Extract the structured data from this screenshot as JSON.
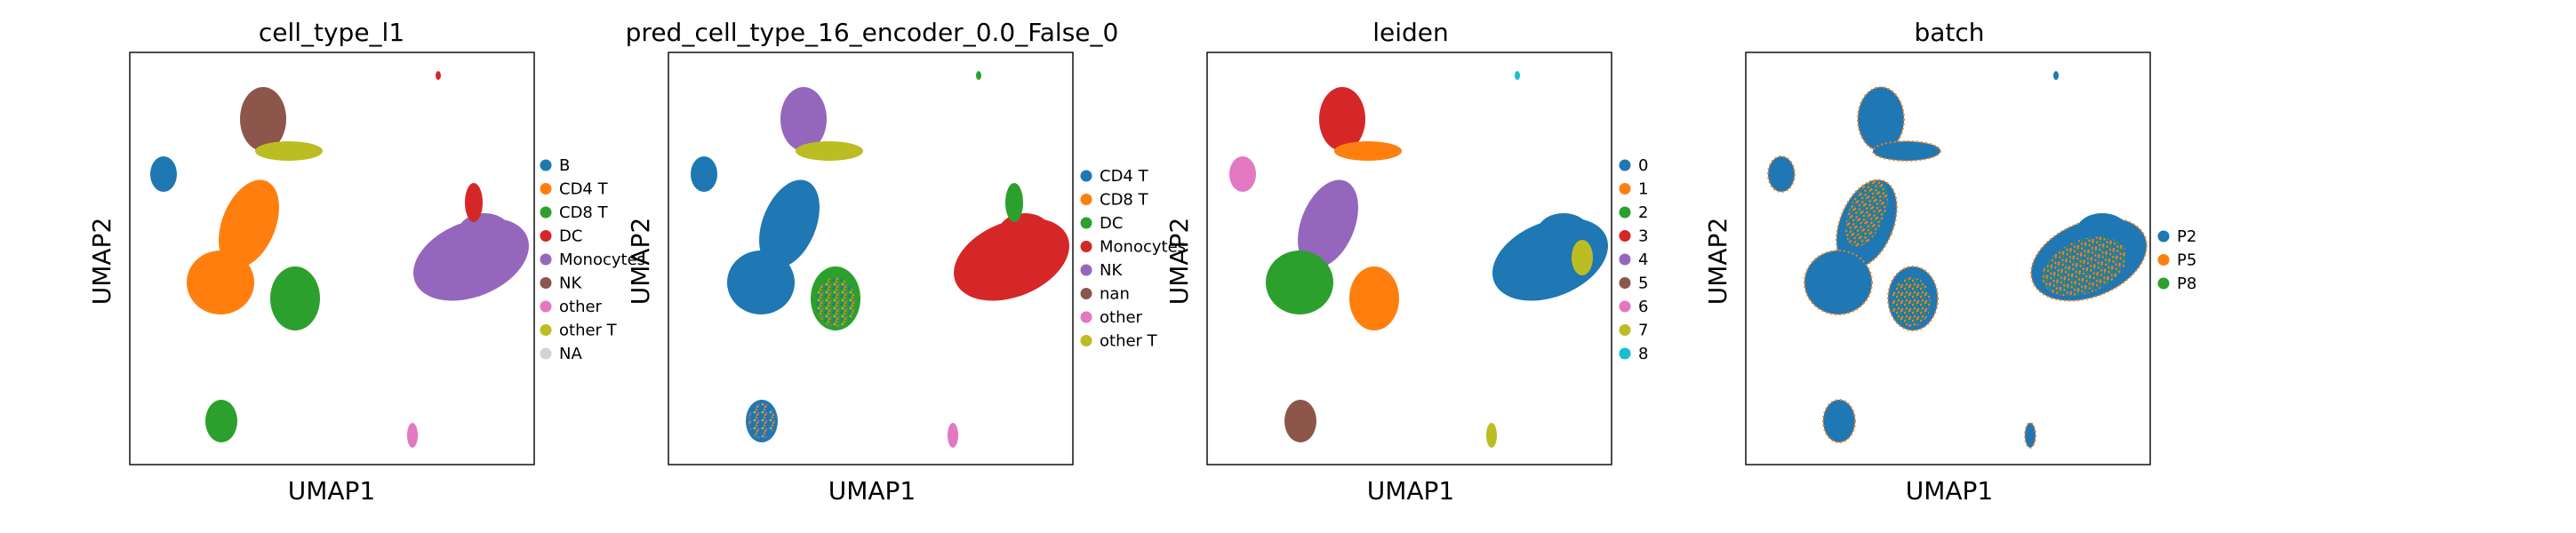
{
  "chart_data": [
    {
      "type": "scatter",
      "title": "cell_type_l1",
      "xlabel": "UMAP1",
      "ylabel": "UMAP2",
      "grid": false,
      "ticks": false,
      "legend_position": "right",
      "legend": [
        {
          "label": "B",
          "color": "#1f77b4"
        },
        {
          "label": "CD4 T",
          "color": "#ff7f0e"
        },
        {
          "label": "CD8 T",
          "color": "#2ca02c"
        },
        {
          "label": "DC",
          "color": "#d62728"
        },
        {
          "label": "Monocytes",
          "color": "#9467bd"
        },
        {
          "label": "NK",
          "color": "#8c564b"
        },
        {
          "label": "other",
          "color": "#e377c2"
        },
        {
          "label": "other T",
          "color": "#bcbd22"
        },
        {
          "label": "NA",
          "color": "#d3d3d3"
        }
      ]
    },
    {
      "type": "scatter",
      "title": "pred_cell_type_16_encoder_0.0_False_0",
      "xlabel": "UMAP1",
      "ylabel": "UMAP2",
      "grid": false,
      "ticks": false,
      "legend_position": "right",
      "legend": [
        {
          "label": "CD4 T",
          "color": "#1f77b4"
        },
        {
          "label": "CD8 T",
          "color": "#ff7f0e"
        },
        {
          "label": "DC",
          "color": "#2ca02c"
        },
        {
          "label": "Monocytes",
          "color": "#d62728"
        },
        {
          "label": "NK",
          "color": "#9467bd"
        },
        {
          "label": "nan",
          "color": "#8c564b"
        },
        {
          "label": "other",
          "color": "#e377c2"
        },
        {
          "label": "other T",
          "color": "#bcbd22"
        }
      ]
    },
    {
      "type": "scatter",
      "title": "leiden",
      "xlabel": "UMAP1",
      "ylabel": "UMAP2",
      "grid": false,
      "ticks": false,
      "legend_position": "right",
      "legend": [
        {
          "label": "0",
          "color": "#1f77b4"
        },
        {
          "label": "1",
          "color": "#ff7f0e"
        },
        {
          "label": "2",
          "color": "#2ca02c"
        },
        {
          "label": "3",
          "color": "#d62728"
        },
        {
          "label": "4",
          "color": "#9467bd"
        },
        {
          "label": "5",
          "color": "#8c564b"
        },
        {
          "label": "6",
          "color": "#e377c2"
        },
        {
          "label": "7",
          "color": "#bcbd22"
        },
        {
          "label": "8",
          "color": "#17becf"
        }
      ]
    },
    {
      "type": "scatter",
      "title": "batch",
      "xlabel": "UMAP1",
      "ylabel": "UMAP2",
      "grid": false,
      "ticks": false,
      "legend_position": "right",
      "legend": [
        {
          "label": "P2",
          "color": "#1f77b4"
        },
        {
          "label": "P5",
          "color": "#ff7f0e"
        },
        {
          "label": "P8",
          "color": "#2ca02c"
        }
      ]
    }
  ]
}
